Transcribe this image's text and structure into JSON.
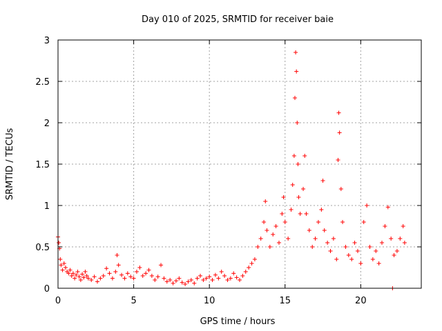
{
  "chart_data": {
    "type": "scatter",
    "title": "Day 010 of 2025, SRMTID for receiver baie",
    "xlabel": "GPS time / hours",
    "ylabel": "SRMTID / TECUs",
    "xlim": [
      0,
      24
    ],
    "ylim": [
      0,
      3
    ],
    "xticks": [
      0,
      5,
      10,
      15,
      20
    ],
    "yticks": [
      0,
      0.5,
      1,
      1.5,
      2,
      2.5,
      3
    ],
    "xtick_labels": [
      "0",
      "5",
      "10",
      "15",
      "20"
    ],
    "ytick_labels": [
      "0",
      "0.5",
      "1",
      "1.5",
      "2",
      "2.5",
      "3"
    ],
    "grid": true,
    "marker": "+",
    "color": "#ff0000",
    "series": [
      {
        "name": "SRMTID",
        "points": [
          [
            0.0,
            0.62
          ],
          [
            0.05,
            0.55
          ],
          [
            0.1,
            0.48
          ],
          [
            0.15,
            0.35
          ],
          [
            0.2,
            0.28
          ],
          [
            0.3,
            0.22
          ],
          [
            0.4,
            0.3
          ],
          [
            0.5,
            0.25
          ],
          [
            0.6,
            0.2
          ],
          [
            0.7,
            0.18
          ],
          [
            0.8,
            0.22
          ],
          [
            0.9,
            0.15
          ],
          [
            1.0,
            0.18
          ],
          [
            1.1,
            0.12
          ],
          [
            1.2,
            0.16
          ],
          [
            1.3,
            0.2
          ],
          [
            1.4,
            0.14
          ],
          [
            1.5,
            0.1
          ],
          [
            1.6,
            0.17
          ],
          [
            1.7,
            0.13
          ],
          [
            1.8,
            0.2
          ],
          [
            1.9,
            0.15
          ],
          [
            2.0,
            0.12
          ],
          [
            2.2,
            0.1
          ],
          [
            2.4,
            0.14
          ],
          [
            2.6,
            0.08
          ],
          [
            2.8,
            0.12
          ],
          [
            3.0,
            0.15
          ],
          [
            3.2,
            0.24
          ],
          [
            3.4,
            0.18
          ],
          [
            3.6,
            0.12
          ],
          [
            3.8,
            0.2
          ],
          [
            3.9,
            0.4
          ],
          [
            4.0,
            0.28
          ],
          [
            4.2,
            0.16
          ],
          [
            4.4,
            0.12
          ],
          [
            4.6,
            0.18
          ],
          [
            4.8,
            0.14
          ],
          [
            5.0,
            0.12
          ],
          [
            5.2,
            0.2
          ],
          [
            5.4,
            0.25
          ],
          [
            5.6,
            0.15
          ],
          [
            5.8,
            0.18
          ],
          [
            6.0,
            0.22
          ],
          [
            6.2,
            0.15
          ],
          [
            6.4,
            0.1
          ],
          [
            6.6,
            0.14
          ],
          [
            6.8,
            0.28
          ],
          [
            7.0,
            0.12
          ],
          [
            7.2,
            0.08
          ],
          [
            7.4,
            0.1
          ],
          [
            7.6,
            0.06
          ],
          [
            7.8,
            0.09
          ],
          [
            8.0,
            0.12
          ],
          [
            8.2,
            0.07
          ],
          [
            8.4,
            0.05
          ],
          [
            8.6,
            0.08
          ],
          [
            8.8,
            0.1
          ],
          [
            9.0,
            0.06
          ],
          [
            9.2,
            0.12
          ],
          [
            9.4,
            0.15
          ],
          [
            9.6,
            0.1
          ],
          [
            9.8,
            0.12
          ],
          [
            10.0,
            0.14
          ],
          [
            10.2,
            0.1
          ],
          [
            10.4,
            0.16
          ],
          [
            10.6,
            0.12
          ],
          [
            10.8,
            0.2
          ],
          [
            11.0,
            0.15
          ],
          [
            11.2,
            0.1
          ],
          [
            11.4,
            0.12
          ],
          [
            11.6,
            0.18
          ],
          [
            11.8,
            0.13
          ],
          [
            12.0,
            0.1
          ],
          [
            12.2,
            0.15
          ],
          [
            12.4,
            0.2
          ],
          [
            12.6,
            0.25
          ],
          [
            12.8,
            0.3
          ],
          [
            13.0,
            0.35
          ],
          [
            13.2,
            0.5
          ],
          [
            13.4,
            0.6
          ],
          [
            13.6,
            0.8
          ],
          [
            13.7,
            1.05
          ],
          [
            13.8,
            0.7
          ],
          [
            14.0,
            0.5
          ],
          [
            14.2,
            0.65
          ],
          [
            14.4,
            0.75
          ],
          [
            14.6,
            0.55
          ],
          [
            14.8,
            0.9
          ],
          [
            14.9,
            1.1
          ],
          [
            15.0,
            0.8
          ],
          [
            15.2,
            0.6
          ],
          [
            15.4,
            0.95
          ],
          [
            15.5,
            1.25
          ],
          [
            15.6,
            1.6
          ],
          [
            15.65,
            2.3
          ],
          [
            15.7,
            2.85
          ],
          [
            15.75,
            2.62
          ],
          [
            15.8,
            2.0
          ],
          [
            15.85,
            1.5
          ],
          [
            15.9,
            1.1
          ],
          [
            16.0,
            0.9
          ],
          [
            16.2,
            1.2
          ],
          [
            16.3,
            1.6
          ],
          [
            16.4,
            0.9
          ],
          [
            16.6,
            0.7
          ],
          [
            16.8,
            0.5
          ],
          [
            17.0,
            0.6
          ],
          [
            17.2,
            0.8
          ],
          [
            17.4,
            0.95
          ],
          [
            17.5,
            1.3
          ],
          [
            17.6,
            0.7
          ],
          [
            17.8,
            0.55
          ],
          [
            18.0,
            0.45
          ],
          [
            18.2,
            0.6
          ],
          [
            18.4,
            0.35
          ],
          [
            18.5,
            1.55
          ],
          [
            18.55,
            2.12
          ],
          [
            18.6,
            1.88
          ],
          [
            18.7,
            1.2
          ],
          [
            18.8,
            0.8
          ],
          [
            19.0,
            0.5
          ],
          [
            19.2,
            0.4
          ],
          [
            19.4,
            0.35
          ],
          [
            19.6,
            0.55
          ],
          [
            19.8,
            0.45
          ],
          [
            20.0,
            0.3
          ],
          [
            20.2,
            0.8
          ],
          [
            20.4,
            1.0
          ],
          [
            20.6,
            0.5
          ],
          [
            20.8,
            0.35
          ],
          [
            21.0,
            0.45
          ],
          [
            21.2,
            0.3
          ],
          [
            21.4,
            0.55
          ],
          [
            21.6,
            0.75
          ],
          [
            21.8,
            0.98
          ],
          [
            22.0,
            0.6
          ],
          [
            22.1,
            0.0
          ],
          [
            22.2,
            0.4
          ],
          [
            22.4,
            0.45
          ],
          [
            22.6,
            0.6
          ],
          [
            22.8,
            0.75
          ],
          [
            22.9,
            0.55
          ]
        ]
      }
    ]
  }
}
